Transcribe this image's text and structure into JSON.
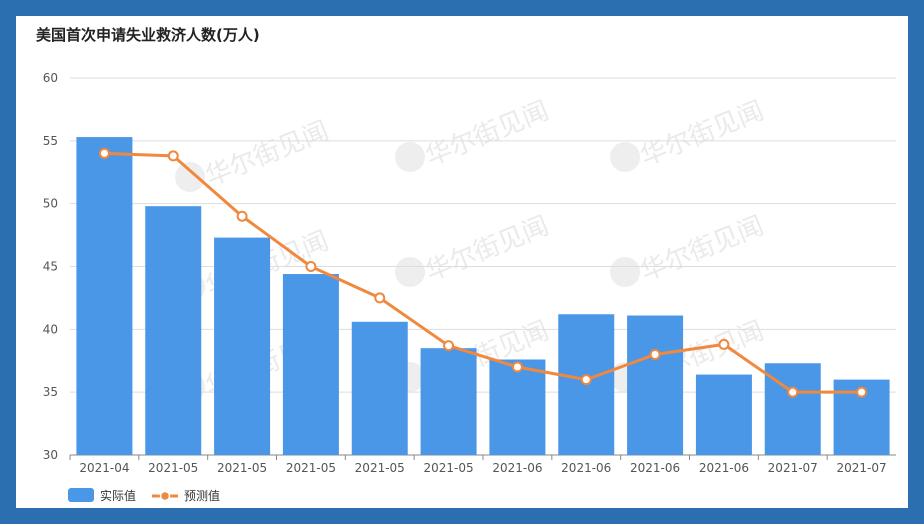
{
  "chart_data": {
    "type": "bar",
    "title": "美国首次申请失业救济人数(万人)",
    "categories": [
      "2021-04",
      "2021-05",
      "2021-05",
      "2021-05",
      "2021-05",
      "2021-05",
      "2021-06",
      "2021-06",
      "2021-06",
      "2021-06",
      "2021-07",
      "2021-07"
    ],
    "series": [
      {
        "name": "实际值",
        "type": "bar",
        "color": "#4a97e8",
        "values": [
          55.3,
          49.8,
          47.3,
          44.4,
          40.6,
          38.5,
          37.6,
          41.2,
          41.1,
          36.4,
          37.3,
          36.0
        ]
      },
      {
        "name": "预测值",
        "type": "line",
        "color": "#f0883e",
        "values": [
          54.0,
          53.8,
          49.0,
          45.0,
          42.5,
          38.7,
          37.0,
          36.0,
          38.0,
          38.8,
          35.0,
          35.0
        ]
      }
    ],
    "ylim": [
      30,
      60
    ],
    "yticks": [
      30,
      35,
      40,
      45,
      50,
      55,
      60
    ],
    "grid": true,
    "legend": "bottom-left",
    "watermark": "华尔街见闻"
  }
}
